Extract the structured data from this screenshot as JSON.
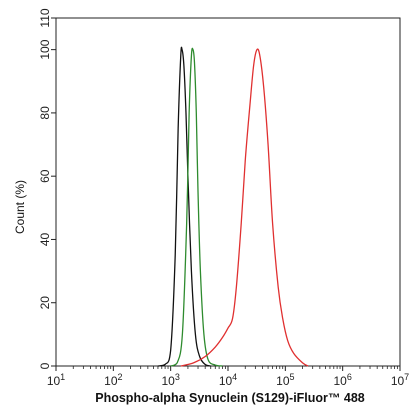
{
  "chart_data": {
    "type": "line",
    "title": "",
    "xlabel": "Phospho-alpha Synuclein (S129)-iFluor™ 488",
    "ylabel": "Count (%)",
    "x_scale": "log",
    "xlim": [
      10,
      10000000
    ],
    "ylim": [
      0,
      110
    ],
    "x_ticks": [
      {
        "value": 10,
        "base": "10",
        "exp": "1"
      },
      {
        "value": 100,
        "base": "10",
        "exp": "2"
      },
      {
        "value": 1000,
        "base": "10",
        "exp": "3"
      },
      {
        "value": 10000,
        "base": "10",
        "exp": "4"
      },
      {
        "value": 100000,
        "base": "10",
        "exp": "5"
      },
      {
        "value": 1000000,
        "base": "10",
        "exp": "6"
      },
      {
        "value": 10000000,
        "base": "10",
        "exp": "7"
      }
    ],
    "y_ticks": [
      "0",
      "20",
      "40",
      "60",
      "80",
      "100",
      "110"
    ],
    "grid": false,
    "series": [
      {
        "color": "#111111",
        "points": [
          [
            600,
            0
          ],
          [
            800,
            0.5
          ],
          [
            1000,
            5
          ],
          [
            1200,
            35
          ],
          [
            1350,
            75
          ],
          [
            1500,
            98
          ],
          [
            1580,
            100
          ],
          [
            1700,
            95
          ],
          [
            1850,
            80
          ],
          [
            2000,
            60
          ],
          [
            2300,
            30
          ],
          [
            2700,
            10
          ],
          [
            3200,
            3
          ],
          [
            4000,
            0.5
          ],
          [
            5000,
            0
          ]
        ]
      },
      {
        "color": "#2e8b2e",
        "points": [
          [
            1000,
            0
          ],
          [
            1300,
            1
          ],
          [
            1600,
            10
          ],
          [
            1900,
            45
          ],
          [
            2100,
            80
          ],
          [
            2300,
            98
          ],
          [
            2450,
            100
          ],
          [
            2600,
            96
          ],
          [
            2800,
            80
          ],
          [
            3000,
            55
          ],
          [
            3300,
            30
          ],
          [
            3800,
            10
          ],
          [
            4500,
            2
          ],
          [
            6000,
            0.3
          ],
          [
            8000,
            0
          ]
        ]
      },
      {
        "color": "#e03030",
        "points": [
          [
            1500,
            0
          ],
          [
            2500,
            1
          ],
          [
            4000,
            3
          ],
          [
            6000,
            6
          ],
          [
            8000,
            9
          ],
          [
            10000,
            12
          ],
          [
            12000,
            15
          ],
          [
            14000,
            25
          ],
          [
            17000,
            45
          ],
          [
            20000,
            65
          ],
          [
            24000,
            82
          ],
          [
            28000,
            95
          ],
          [
            32000,
            100
          ],
          [
            36000,
            98
          ],
          [
            42000,
            88
          ],
          [
            50000,
            70
          ],
          [
            60000,
            45
          ],
          [
            75000,
            25
          ],
          [
            90000,
            15
          ],
          [
            110000,
            8
          ],
          [
            140000,
            4
          ],
          [
            200000,
            1
          ],
          [
            250000,
            0
          ]
        ]
      }
    ]
  }
}
